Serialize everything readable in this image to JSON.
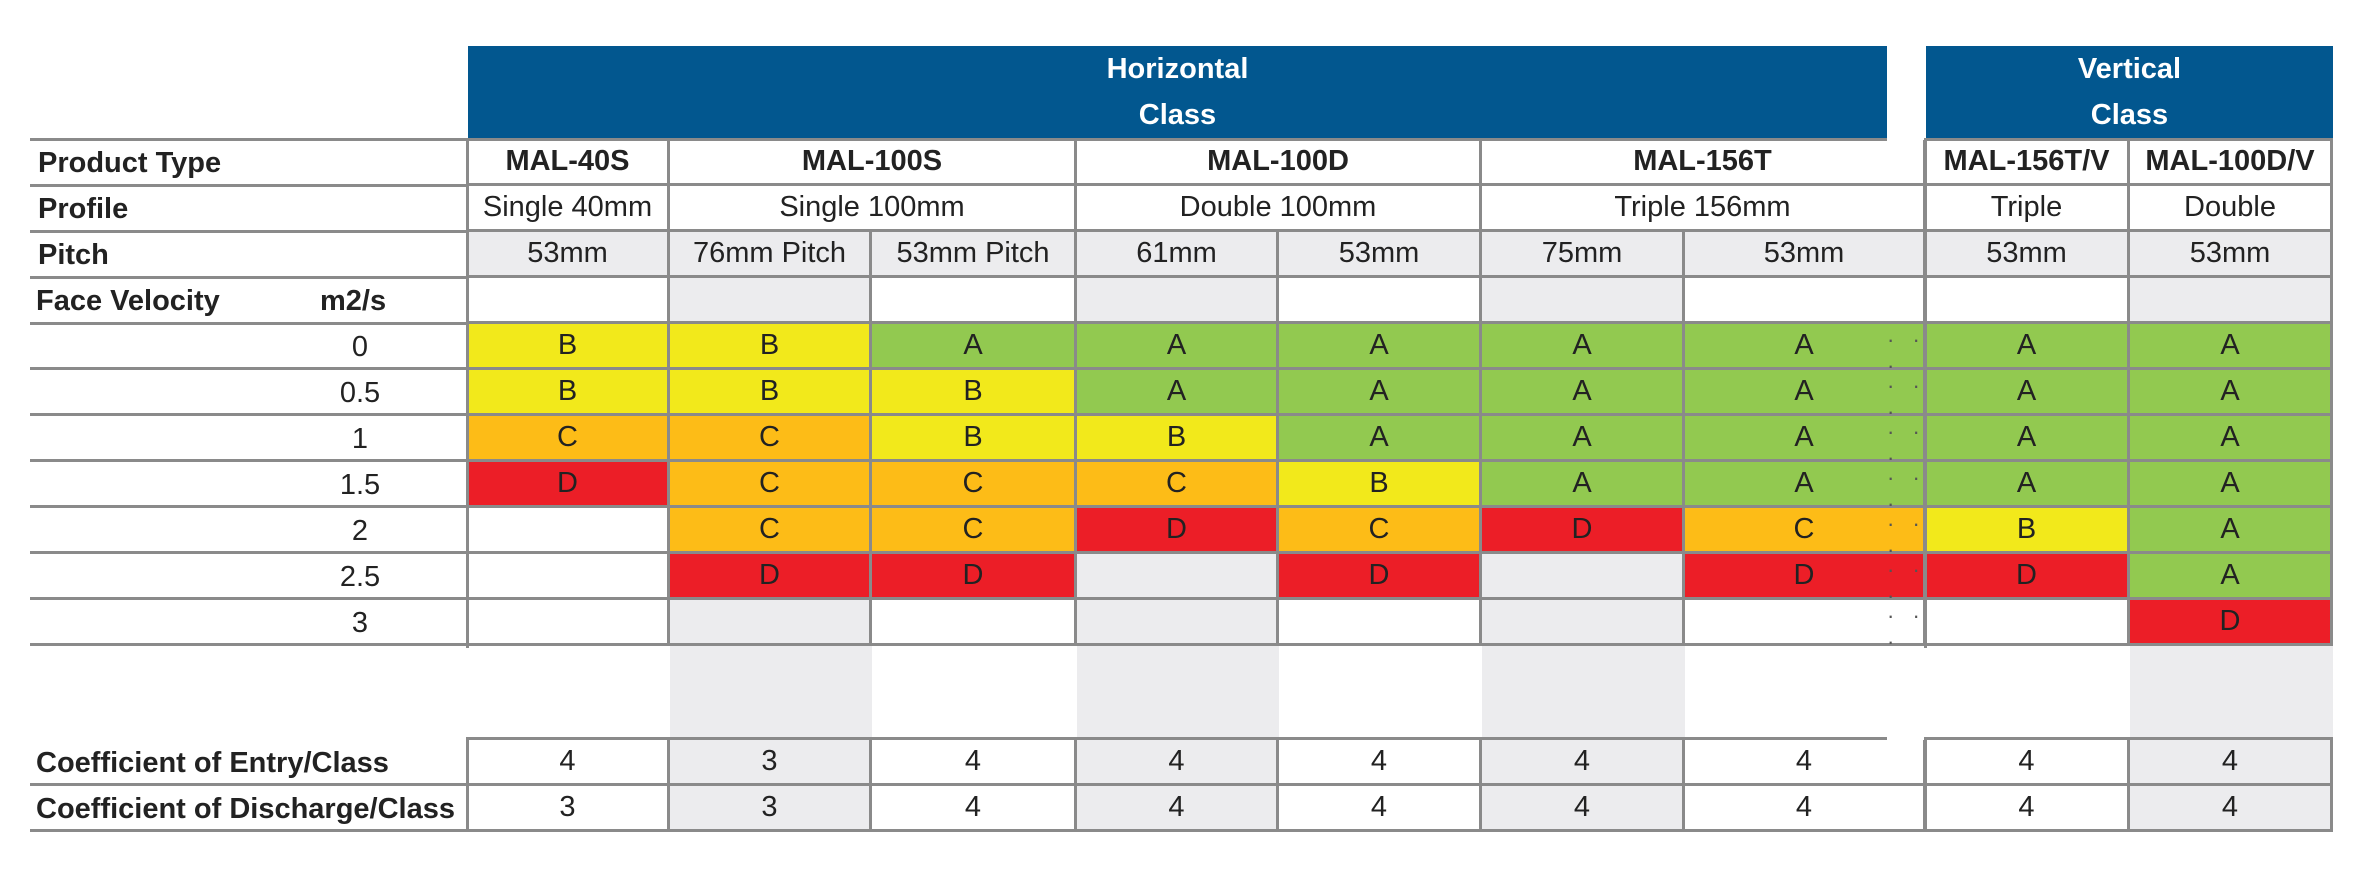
{
  "headers": {
    "horizontal": [
      "Horizontal",
      "Class"
    ],
    "vertical": [
      "Vertical",
      "Class"
    ]
  },
  "row_labels": {
    "product_type": "Product Type",
    "profile": "Profile",
    "pitch": "Pitch",
    "face_velocity": "Face Velocity",
    "face_velocity_unit": "m2/s"
  },
  "products": [
    {
      "name": "MAL-40S",
      "profile": "Single 40mm"
    },
    {
      "name": "MAL-100S",
      "profile": "Single 100mm"
    },
    {
      "name": "MAL-100D",
      "profile": "Double 100mm"
    },
    {
      "name": "MAL-156T",
      "profile": "Triple 156mm"
    },
    {
      "name": "MAL-156T/V",
      "profile": "Triple"
    },
    {
      "name": "MAL-100D/V",
      "profile": "Double"
    }
  ],
  "pitches": [
    "53mm",
    "76mm Pitch",
    "53mm Pitch",
    "61mm",
    "53mm",
    "75mm",
    "53mm",
    "53mm",
    "53mm"
  ],
  "velocities": [
    "0",
    "0.5",
    "1",
    "1.5",
    "2",
    "2.5",
    "3"
  ],
  "grades": [
    [
      "B",
      "B",
      "A",
      "A",
      "A",
      "A",
      "A",
      "A",
      "A"
    ],
    [
      "B",
      "B",
      "B",
      "A",
      "A",
      "A",
      "A",
      "A",
      "A"
    ],
    [
      "C",
      "C",
      "B",
      "B",
      "A",
      "A",
      "A",
      "A",
      "A"
    ],
    [
      "D",
      "C",
      "C",
      "C",
      "B",
      "A",
      "A",
      "A",
      "A"
    ],
    [
      "",
      "C",
      "C",
      "D",
      "C",
      "D",
      "C",
      "B",
      "A"
    ],
    [
      "",
      "D",
      "D",
      "",
      "D",
      "",
      "D",
      "D",
      "A"
    ],
    [
      "",
      "",
      "",
      "",
      "",
      "",
      "",
      "",
      "D"
    ]
  ],
  "coefficients": {
    "entry_label": "Coefficient of Entry/Class",
    "discharge_label": "Coefficient of Discharge/Class",
    "entry": [
      "4",
      "3",
      "4",
      "4",
      "4",
      "4",
      "4",
      "4",
      "4"
    ],
    "discharge": [
      "3",
      "3",
      "4",
      "4",
      "4",
      "4",
      "4",
      "4",
      "4"
    ]
  },
  "colors": {
    "header_blue": "#02578f",
    "grade_A": "#92c950",
    "grade_B": "#f2e91b",
    "grade_C": "#fdbc17",
    "grade_D": "#ec1e27",
    "stripe_grey": "#ececee"
  }
}
